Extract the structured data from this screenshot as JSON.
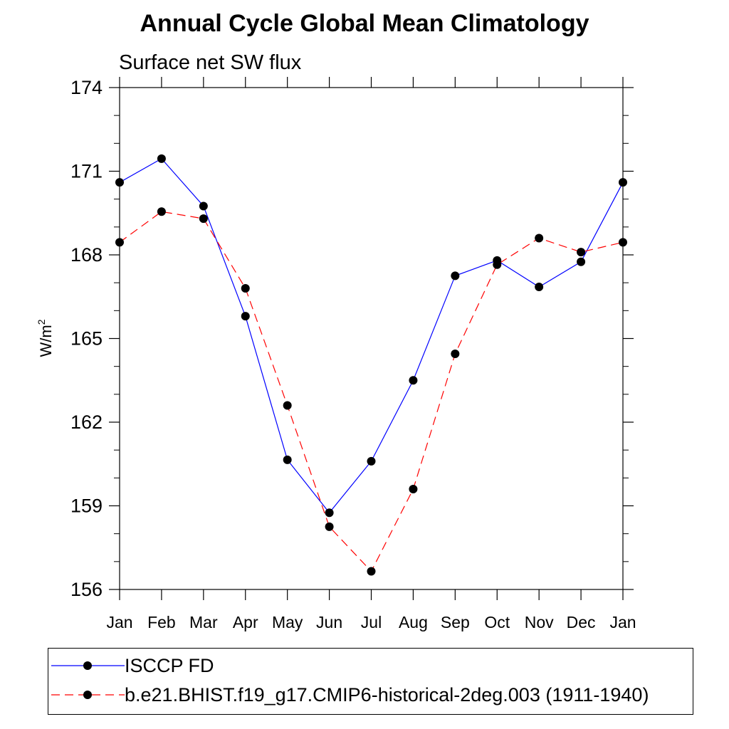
{
  "chart_data": {
    "type": "line",
    "title": "Annual Cycle Global Mean Climatology",
    "subtitle": "Surface net SW flux",
    "xlabel": "",
    "ylabel": "W/m",
    "ylabel_sup": "2",
    "categories": [
      "Jan",
      "Feb",
      "Mar",
      "Apr",
      "May",
      "Jun",
      "Jul",
      "Aug",
      "Sep",
      "Oct",
      "Nov",
      "Dec",
      "Jan"
    ],
    "ylim": [
      156,
      174
    ],
    "yticks": [
      156,
      159,
      162,
      165,
      168,
      171,
      174
    ],
    "grid": false,
    "legend_placement": "bottom",
    "series": [
      {
        "name": "ISCCP FD",
        "color": "#0000ff",
        "line_style": "solid",
        "values": [
          170.6,
          171.45,
          169.75,
          165.8,
          160.65,
          158.75,
          160.6,
          163.5,
          167.25,
          167.8,
          166.85,
          167.75,
          170.6
        ]
      },
      {
        "name": "b.e21.BHIST.f19_g17.CMIP6-historical-2deg.003 (1911-1940)",
        "color": "#ff0000",
        "line_style": "dashed",
        "values": [
          168.45,
          169.55,
          169.3,
          166.8,
          162.6,
          158.25,
          156.65,
          159.6,
          164.45,
          167.65,
          168.6,
          168.1,
          168.45
        ]
      }
    ]
  }
}
